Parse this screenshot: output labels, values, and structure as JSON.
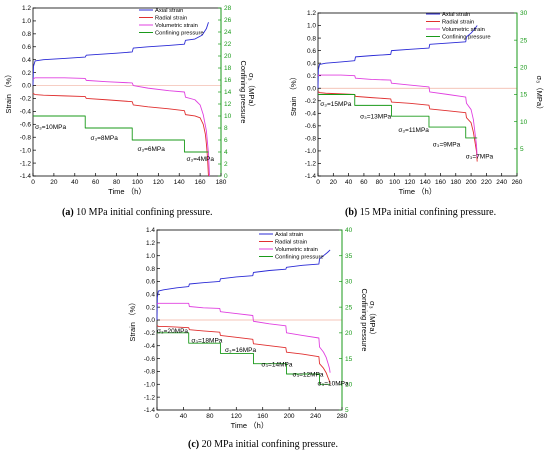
{
  "chart_data": [
    {
      "type": "line",
      "caption_tag": "(a)",
      "caption_text": " 10 MPa initial confining pressure.",
      "xlabel": "Time （h）",
      "ylabel": "Strain （%）",
      "y2label": "Confining pressure",
      "y2label_sub": "σ₃（MPa）",
      "xlim": [
        0,
        180
      ],
      "xticks": [
        "0",
        "20",
        "40",
        "60",
        "80",
        "100",
        "120",
        "140",
        "160",
        "180"
      ],
      "ylim": [
        -1.4,
        1.2
      ],
      "yticks": [
        "-1.4",
        "-1.2",
        "-1.0",
        "-0.8",
        "-0.6",
        "-0.4",
        "-0.2",
        "0.0",
        "0.2",
        "0.4",
        "0.6",
        "0.8",
        "1.0",
        "1.2"
      ],
      "y2lim": [
        0,
        28
      ],
      "y2ticks": [
        "0",
        "2",
        "4",
        "6",
        "8",
        "10",
        "12",
        "14",
        "16",
        "18",
        "20",
        "22",
        "24",
        "26",
        "28"
      ],
      "legend": [
        "Axial strain",
        "Radial strain",
        "Volumetric strain",
        "Confining pressure"
      ],
      "pressure_labels": [
        {
          "text": "σ₃=10MPa",
          "x": 2,
          "y": -0.67
        },
        {
          "text": "σ₃=8MPa",
          "x": 55,
          "y": -0.84
        },
        {
          "text": "σ₃=6MPa",
          "x": 100,
          "y": -1.01
        },
        {
          "text": "σ₃=4MPa",
          "x": 147,
          "y": -1.17
        }
      ],
      "series": [
        {
          "name": "Axial strain",
          "color": "#2b2bd6",
          "x": [
            0,
            0.5,
            2,
            10,
            30,
            50,
            51,
            60,
            80,
            95,
            96,
            110,
            130,
            145,
            146,
            155,
            162,
            166,
            168
          ],
          "y": [
            0,
            0.3,
            0.38,
            0.4,
            0.42,
            0.44,
            0.47,
            0.48,
            0.5,
            0.52,
            0.58,
            0.6,
            0.62,
            0.64,
            0.7,
            0.72,
            0.78,
            0.88,
            0.98
          ]
        },
        {
          "name": "Radial strain",
          "color": "#e03030",
          "x": [
            0,
            2,
            10,
            30,
            50,
            51,
            70,
            95,
            96,
            110,
            130,
            145,
            146,
            155,
            160,
            163,
            165,
            166,
            167,
            168
          ],
          "y": [
            -0.12,
            -0.14,
            -0.15,
            -0.16,
            -0.17,
            -0.2,
            -0.22,
            -0.25,
            -0.3,
            -0.33,
            -0.36,
            -0.39,
            -0.45,
            -0.47,
            -0.5,
            -0.6,
            -0.75,
            -0.9,
            -1.1,
            -1.4
          ]
        },
        {
          "name": "Volumetric strain",
          "color": "#e040e0",
          "x": [
            0,
            2,
            10,
            30,
            50,
            51,
            70,
            95,
            96,
            110,
            130,
            145,
            146,
            155,
            160,
            163,
            166,
            168,
            169
          ],
          "y": [
            0.1,
            0.12,
            0.12,
            0.12,
            0.11,
            0.08,
            0.06,
            0.04,
            0.0,
            -0.04,
            -0.08,
            -0.1,
            -0.18,
            -0.22,
            -0.3,
            -0.45,
            -0.7,
            -1.05,
            -1.4
          ]
        },
        {
          "name": "Confining pressure",
          "color": "#1a9a1a",
          "axis": "right",
          "x": [
            0,
            50,
            50,
            95,
            95,
            145,
            145,
            168
          ],
          "y": [
            10,
            10,
            8,
            8,
            6,
            6,
            4,
            4
          ]
        }
      ]
    },
    {
      "type": "line",
      "caption_tag": "(b)",
      "caption_text": " 15 MPa initial confining pressure.",
      "xlabel": "Time （h）",
      "ylabel": "Strain （%）",
      "y2label": "σ₃（MPa）",
      "y2label_sub": "",
      "xlim": [
        0,
        260
      ],
      "xticks": [
        "0",
        "20",
        "40",
        "60",
        "80",
        "100",
        "120",
        "140",
        "160",
        "180",
        "200",
        "220",
        "240",
        "260"
      ],
      "ylim": [
        -1.4,
        1.2
      ],
      "yticks": [
        "-1.4",
        "-1.2",
        "-1.0",
        "-0.8",
        "-0.6",
        "-0.4",
        "-0.2",
        "0.0",
        "0.2",
        "0.4",
        "0.6",
        "0.8",
        "1.0",
        "1.2"
      ],
      "y2lim": [
        0,
        30
      ],
      "y2ticks": [
        "5",
        "10",
        "15",
        "20",
        "25",
        "30"
      ],
      "legend": [
        "Axial strain",
        "Radial strain",
        "Volumetric strain",
        "Confining pressure"
      ],
      "pressure_labels": [
        {
          "text": "σ₃=15MPa",
          "x": 3,
          "y": -0.28
        },
        {
          "text": "σ₃=13MPa",
          "x": 55,
          "y": -0.48
        },
        {
          "text": "σ₃=11MPa",
          "x": 105,
          "y": -0.7
        },
        {
          "text": "σ₃=9MPa",
          "x": 150,
          "y": -0.93
        },
        {
          "text": "σ₃=7MPa",
          "x": 193,
          "y": -1.12
        }
      ],
      "series": [
        {
          "name": "Axial strain",
          "color": "#2b2bd6",
          "x": [
            0,
            0.5,
            2,
            10,
            30,
            48,
            49,
            70,
            95,
            96,
            120,
            145,
            146,
            170,
            193,
            194,
            200,
            205,
            208
          ],
          "y": [
            0,
            0.3,
            0.38,
            0.4,
            0.42,
            0.44,
            0.5,
            0.52,
            0.54,
            0.6,
            0.62,
            0.64,
            0.7,
            0.72,
            0.74,
            0.82,
            0.88,
            0.95,
            1.0
          ]
        },
        {
          "name": "Radial strain",
          "color": "#e03030",
          "x": [
            0,
            2,
            10,
            30,
            48,
            49,
            70,
            95,
            96,
            120,
            145,
            146,
            170,
            193,
            194,
            200,
            203,
            205,
            207,
            208
          ],
          "y": [
            -0.05,
            -0.07,
            -0.08,
            -0.09,
            -0.1,
            -0.13,
            -0.15,
            -0.17,
            -0.22,
            -0.24,
            -0.27,
            -0.33,
            -0.36,
            -0.39,
            -0.47,
            -0.55,
            -0.7,
            -0.85,
            -1.0,
            -1.17
          ]
        },
        {
          "name": "Volumetric strain",
          "color": "#e040e0",
          "x": [
            0,
            2,
            10,
            30,
            48,
            49,
            70,
            95,
            96,
            120,
            145,
            146,
            170,
            193,
            194,
            200,
            203,
            205,
            207,
            208
          ],
          "y": [
            0.2,
            0.21,
            0.21,
            0.21,
            0.2,
            0.16,
            0.14,
            0.13,
            0.08,
            0.05,
            0.02,
            -0.06,
            -0.1,
            -0.14,
            -0.24,
            -0.34,
            -0.5,
            -0.7,
            -0.9,
            -1.1
          ]
        },
        {
          "name": "Confining pressure",
          "color": "#1a9a1a",
          "axis": "right",
          "x": [
            0,
            48,
            48,
            96,
            96,
            145,
            145,
            193,
            193,
            208
          ],
          "y": [
            15,
            15,
            13,
            13,
            11,
            11,
            9,
            9,
            7,
            7
          ]
        }
      ]
    },
    {
      "type": "line",
      "caption_tag": "(c)",
      "caption_text": " 20 MPa initial confining pressure.",
      "xlabel": "Time （h）",
      "ylabel": "Strain （%）",
      "y2label": "Confining pressure",
      "y2label_sub": "σ₃（MPa）",
      "xlim": [
        0,
        280
      ],
      "xticks": [
        "0",
        "40",
        "80",
        "120",
        "160",
        "200",
        "240",
        "280"
      ],
      "ylim": [
        -1.4,
        1.4
      ],
      "yticks": [
        "-1.4",
        "-1.2",
        "-1.0",
        "-0.8",
        "-0.6",
        "-0.4",
        "-0.2",
        "0.0",
        "0.2",
        "0.4",
        "0.6",
        "0.8",
        "1.0",
        "1.2",
        "1.4"
      ],
      "y2lim": [
        5,
        40
      ],
      "y2ticks": [
        "5",
        "10",
        "15",
        "20",
        "25",
        "30",
        "35",
        "40"
      ],
      "legend": [
        "Axial strain",
        "Radial strain",
        "Volumetric strain",
        "Confining pressure"
      ],
      "pressure_labels": [
        {
          "text": "σ₃=20MPa",
          "x": 0,
          "y": -0.2
        },
        {
          "text": "σ₃=18MPa",
          "x": 52,
          "y": -0.35
        },
        {
          "text": "σ₃=16MPa",
          "x": 103,
          "y": -0.5
        },
        {
          "text": "σ₃=14MPa",
          "x": 158,
          "y": -0.72
        },
        {
          "text": "σ₃=12MPa",
          "x": 205,
          "y": -0.88
        },
        {
          "text": "σ₃=10MPa",
          "x": 243,
          "y": -1.02
        }
      ],
      "series": [
        {
          "name": "Axial strain",
          "color": "#2b2bd6",
          "x": [
            0,
            0.5,
            2,
            10,
            30,
            48,
            49,
            70,
            95,
            96,
            120,
            145,
            146,
            170,
            195,
            196,
            220,
            245,
            246,
            252,
            258,
            262
          ],
          "y": [
            0,
            0.35,
            0.45,
            0.47,
            0.5,
            0.52,
            0.56,
            0.58,
            0.6,
            0.64,
            0.67,
            0.69,
            0.74,
            0.77,
            0.79,
            0.82,
            0.85,
            0.87,
            0.95,
            1.0,
            1.05,
            1.09
          ]
        },
        {
          "name": "Radial strain",
          "color": "#e03030",
          "x": [
            0,
            2,
            10,
            30,
            48,
            49,
            70,
            95,
            96,
            120,
            145,
            146,
            170,
            195,
            196,
            220,
            245,
            246,
            252,
            256,
            259,
            261,
            262
          ],
          "y": [
            -0.08,
            -0.1,
            -0.1,
            -0.11,
            -0.12,
            -0.15,
            -0.17,
            -0.19,
            -0.24,
            -0.27,
            -0.3,
            -0.37,
            -0.4,
            -0.43,
            -0.5,
            -0.53,
            -0.57,
            -0.68,
            -0.75,
            -0.82,
            -0.9,
            -0.95,
            -1.0
          ]
        },
        {
          "name": "Volumetric strain",
          "color": "#e040e0",
          "x": [
            0,
            2,
            10,
            30,
            48,
            49,
            70,
            95,
            96,
            120,
            145,
            146,
            170,
            195,
            196,
            220,
            245,
            246,
            252,
            256,
            259,
            261,
            262
          ],
          "y": [
            0.25,
            0.26,
            0.26,
            0.26,
            0.26,
            0.21,
            0.19,
            0.18,
            0.13,
            0.1,
            0.07,
            -0.02,
            -0.06,
            -0.09,
            -0.2,
            -0.24,
            -0.28,
            -0.42,
            -0.5,
            -0.58,
            -0.68,
            -0.75,
            -0.82
          ]
        },
        {
          "name": "Confining pressure",
          "color": "#1a9a1a",
          "axis": "right",
          "x": [
            0,
            48,
            48,
            96,
            96,
            146,
            146,
            196,
            196,
            246,
            246,
            262
          ],
          "y": [
            20,
            20,
            18,
            18,
            16,
            16,
            14,
            14,
            12,
            12,
            10,
            10
          ]
        }
      ]
    }
  ]
}
